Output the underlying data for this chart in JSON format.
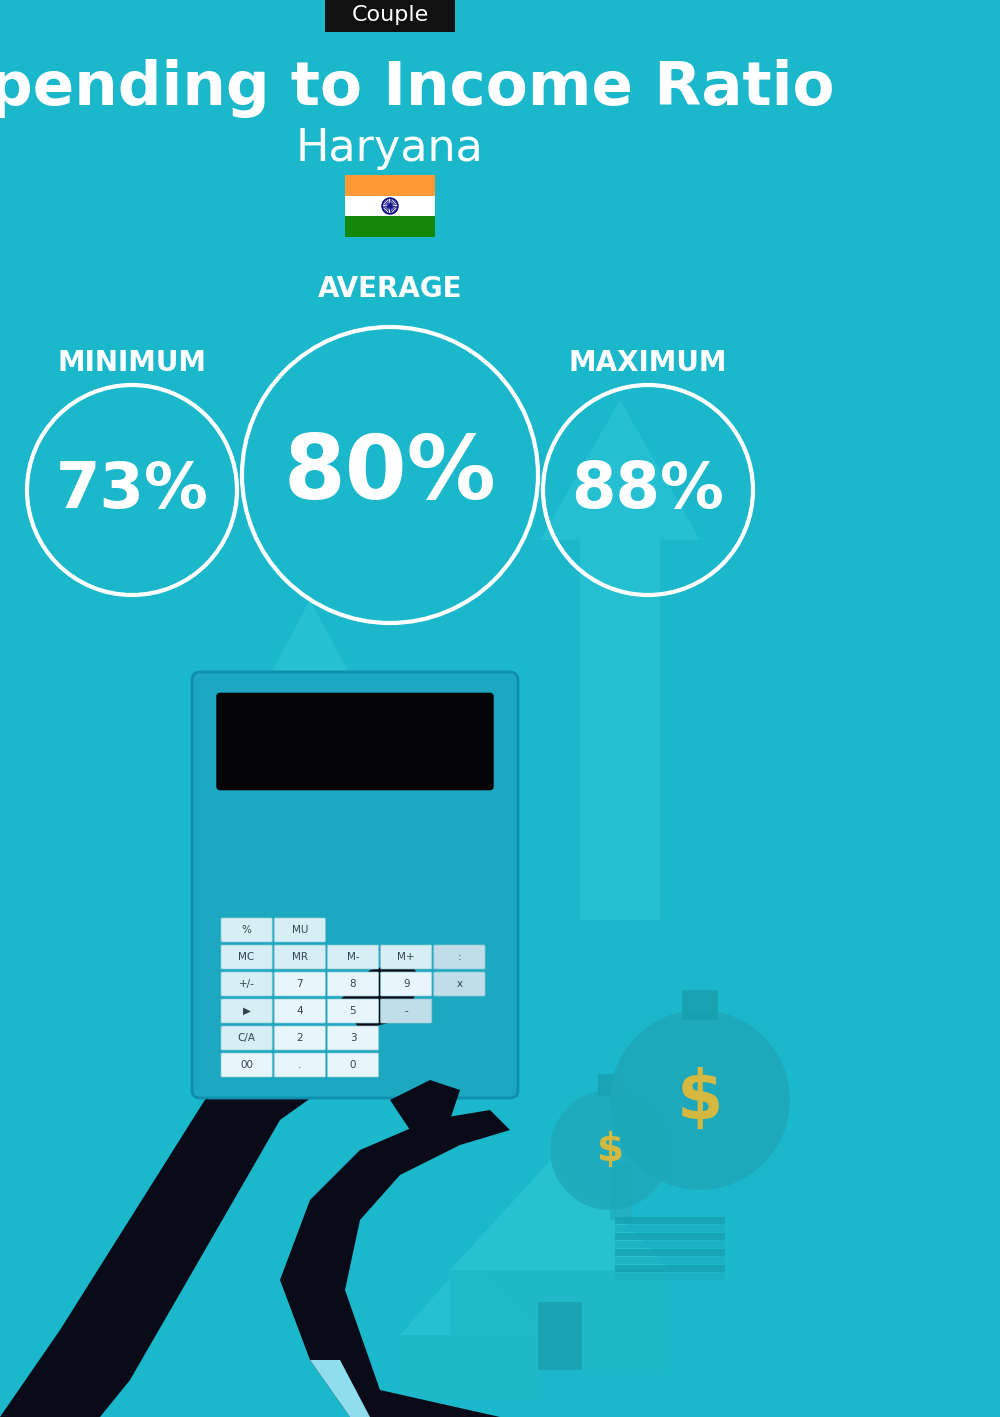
{
  "title": "Spending to Income Ratio",
  "subtitle": "Haryana",
  "tag": "Couple",
  "bg_color": "#1BB8CC",
  "min_value": "73%",
  "avg_value": "80%",
  "max_value": "88%",
  "min_label": "MINIMUM",
  "avg_label": "AVERAGE",
  "max_label": "MAXIMUM",
  "text_color": "white",
  "tag_bg": "#111111",
  "tag_text": "white",
  "title_fontsize": 44,
  "subtitle_fontsize": 32,
  "label_fontsize": 20,
  "value_fontsize_small": 46,
  "value_fontsize_large": 64,
  "fig_width": 10.0,
  "fig_height": 14.17,
  "dpi": 100,
  "arrow_color": "#2EC8D8",
  "house_color": "#28C0D0",
  "hand_color": "#0A0A18",
  "calc_color": "#1BA8C0",
  "cuff_color": "#90DDEE"
}
